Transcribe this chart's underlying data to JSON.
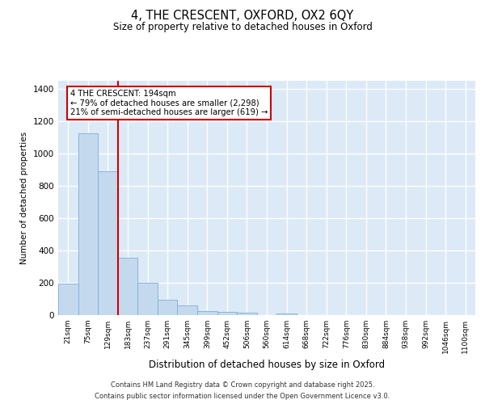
{
  "title1": "4, THE CRESCENT, OXFORD, OX2 6QY",
  "title2": "Size of property relative to detached houses in Oxford",
  "xlabel": "Distribution of detached houses by size in Oxford",
  "ylabel": "Number of detached properties",
  "categories": [
    "21sqm",
    "75sqm",
    "129sqm",
    "183sqm",
    "237sqm",
    "291sqm",
    "345sqm",
    "399sqm",
    "452sqm",
    "506sqm",
    "560sqm",
    "614sqm",
    "668sqm",
    "722sqm",
    "776sqm",
    "830sqm",
    "884sqm",
    "938sqm",
    "992sqm",
    "1046sqm",
    "1100sqm"
  ],
  "values": [
    195,
    1125,
    890,
    355,
    198,
    95,
    58,
    25,
    20,
    15,
    0,
    10,
    0,
    0,
    0,
    0,
    0,
    0,
    0,
    0,
    0
  ],
  "bar_color": "#c5d9ee",
  "bar_edge_color": "#7aafd4",
  "background_color": "#dce9f7",
  "grid_color": "#ffffff",
  "vline_color": "#cc0000",
  "vline_pos": 2.5,
  "annotation_text": "4 THE CRESCENT: 194sqm\n← 79% of detached houses are smaller (2,298)\n21% of semi-detached houses are larger (619) →",
  "annotation_box_color": "#cc0000",
  "ylim": [
    0,
    1450
  ],
  "yticks": [
    0,
    200,
    400,
    600,
    800,
    1000,
    1200,
    1400
  ],
  "footnote1": "Contains HM Land Registry data © Crown copyright and database right 2025.",
  "footnote2": "Contains public sector information licensed under the Open Government Licence v3.0."
}
